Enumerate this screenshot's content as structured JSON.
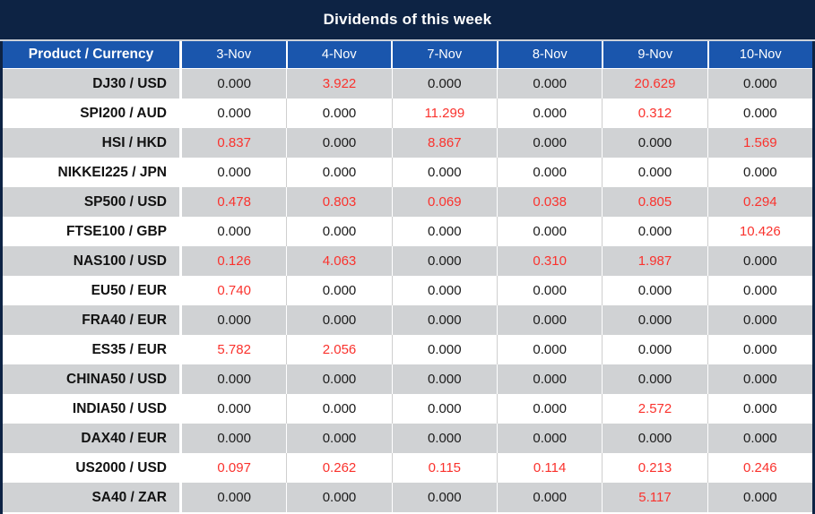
{
  "title": "Dividends of this week",
  "colors": {
    "navy": "#0d2344",
    "header_blue": "#1a56ad",
    "row_alt_gray": "#d0d2d4",
    "row_white": "#ffffff",
    "value_zero_text": "#1b1b1b",
    "value_nonzero_text": "#fa322d",
    "header_text": "#ffffff"
  },
  "chart_data": {
    "type": "table",
    "title": "Dividends of this week",
    "columns": [
      "Product / Currency",
      "3-Nov",
      "4-Nov",
      "7-Nov",
      "8-Nov",
      "9-Nov",
      "10-Nov"
    ],
    "rows": [
      {
        "product": "DJ30 / USD",
        "values": [
          "0.000",
          "3.922",
          "0.000",
          "0.000",
          "20.629",
          "0.000"
        ]
      },
      {
        "product": "SPI200 / AUD",
        "values": [
          "0.000",
          "0.000",
          "11.299",
          "0.000",
          "0.312",
          "0.000"
        ]
      },
      {
        "product": "HSI / HKD",
        "values": [
          "0.837",
          "0.000",
          "8.867",
          "0.000",
          "0.000",
          "1.569"
        ]
      },
      {
        "product": "NIKKEI225 / JPN",
        "values": [
          "0.000",
          "0.000",
          "0.000",
          "0.000",
          "0.000",
          "0.000"
        ]
      },
      {
        "product": "SP500 / USD",
        "values": [
          "0.478",
          "0.803",
          "0.069",
          "0.038",
          "0.805",
          "0.294"
        ]
      },
      {
        "product": "FTSE100 / GBP",
        "values": [
          "0.000",
          "0.000",
          "0.000",
          "0.000",
          "0.000",
          "10.426"
        ]
      },
      {
        "product": "NAS100 / USD",
        "values": [
          "0.126",
          "4.063",
          "0.000",
          "0.310",
          "1.987",
          "0.000"
        ]
      },
      {
        "product": "EU50 / EUR",
        "values": [
          "0.740",
          "0.000",
          "0.000",
          "0.000",
          "0.000",
          "0.000"
        ]
      },
      {
        "product": "FRA40 / EUR",
        "values": [
          "0.000",
          "0.000",
          "0.000",
          "0.000",
          "0.000",
          "0.000"
        ]
      },
      {
        "product": "ES35 / EUR",
        "values": [
          "5.782",
          "2.056",
          "0.000",
          "0.000",
          "0.000",
          "0.000"
        ]
      },
      {
        "product": "CHINA50 / USD",
        "values": [
          "0.000",
          "0.000",
          "0.000",
          "0.000",
          "0.000",
          "0.000"
        ]
      },
      {
        "product": "INDIA50 / USD",
        "values": [
          "0.000",
          "0.000",
          "0.000",
          "0.000",
          "2.572",
          "0.000"
        ]
      },
      {
        "product": "DAX40 / EUR",
        "values": [
          "0.000",
          "0.000",
          "0.000",
          "0.000",
          "0.000",
          "0.000"
        ]
      },
      {
        "product": "US2000 / USD",
        "values": [
          "0.097",
          "0.262",
          "0.115",
          "0.114",
          "0.213",
          "0.246"
        ]
      },
      {
        "product": "SA40 / ZAR",
        "values": [
          "0.000",
          "0.000",
          "0.000",
          "0.000",
          "5.117",
          "0.000"
        ]
      }
    ],
    "legend": "non-zero dividend values rendered in red, zero values in black",
    "layout": {
      "first_row_shading": "gray",
      "row_shading": "alternating"
    }
  }
}
